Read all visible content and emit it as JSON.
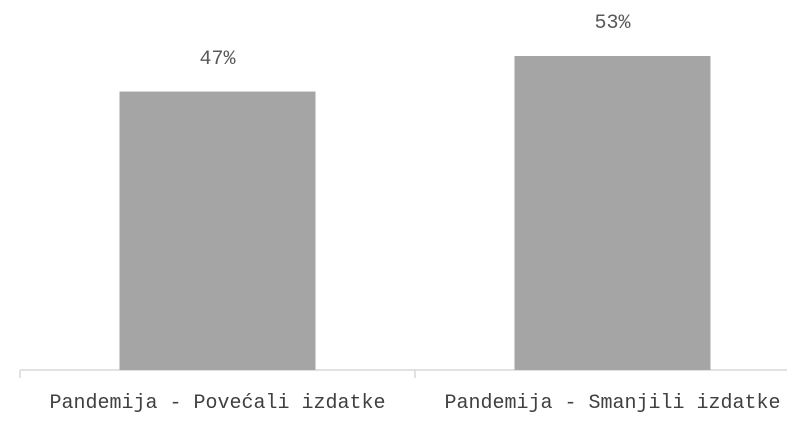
{
  "chart_data": {
    "type": "bar",
    "categories": [
      "Pandemija - Povećali izdatke",
      "Pandemija - Smanjili izdatke"
    ],
    "values": [
      47,
      53
    ],
    "value_labels": [
      "47%",
      "53%"
    ],
    "color": "#a5a5a5"
  }
}
